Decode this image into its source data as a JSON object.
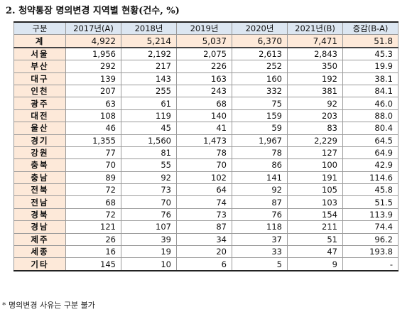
{
  "title": "2. 청약통장 명의변경 지역별 현황(건수, %)",
  "table": {
    "headers": [
      "구분",
      "2017년(A)",
      "2018년",
      "2019년",
      "2020년",
      "2021년(B)",
      "증감(B-A)"
    ],
    "rows": [
      [
        "계",
        "4,922",
        "5,214",
        "5,037",
        "6,370",
        "7,471",
        "51.8"
      ],
      [
        "서울",
        "1,956",
        "2,192",
        "2,075",
        "2,613",
        "2,843",
        "45.3"
      ],
      [
        "부산",
        "292",
        "217",
        "226",
        "252",
        "350",
        "19.9"
      ],
      [
        "대구",
        "139",
        "143",
        "163",
        "160",
        "192",
        "38.1"
      ],
      [
        "인천",
        "207",
        "255",
        "243",
        "332",
        "381",
        "84.1"
      ],
      [
        "광주",
        "63",
        "61",
        "68",
        "75",
        "92",
        "46.0"
      ],
      [
        "대전",
        "108",
        "119",
        "140",
        "159",
        "203",
        "88.0"
      ],
      [
        "울산",
        "46",
        "45",
        "41",
        "59",
        "83",
        "80.4"
      ],
      [
        "경기",
        "1,355",
        "1,560",
        "1,473",
        "1,967",
        "2,229",
        "64.5"
      ],
      [
        "강원",
        "77",
        "81",
        "78",
        "78",
        "127",
        "64.9"
      ],
      [
        "충북",
        "70",
        "55",
        "70",
        "86",
        "100",
        "42.9"
      ],
      [
        "충남",
        "89",
        "92",
        "102",
        "141",
        "191",
        "114.6"
      ],
      [
        "전북",
        "72",
        "73",
        "64",
        "92",
        "105",
        "45.8"
      ],
      [
        "전남",
        "68",
        "70",
        "74",
        "87",
        "103",
        "51.5"
      ],
      [
        "경북",
        "72",
        "76",
        "73",
        "76",
        "154",
        "113.9"
      ],
      [
        "경남",
        "121",
        "107",
        "87",
        "118",
        "211",
        "74.4"
      ],
      [
        "제주",
        "26",
        "39",
        "34",
        "37",
        "51",
        "96.2"
      ],
      [
        "세종",
        "16",
        "19",
        "20",
        "33",
        "47",
        "193.8"
      ],
      [
        "기타",
        "145",
        "10",
        "6",
        "5",
        "9",
        "-"
      ]
    ]
  },
  "note": "* 명의변경 사유는 구분 불가"
}
